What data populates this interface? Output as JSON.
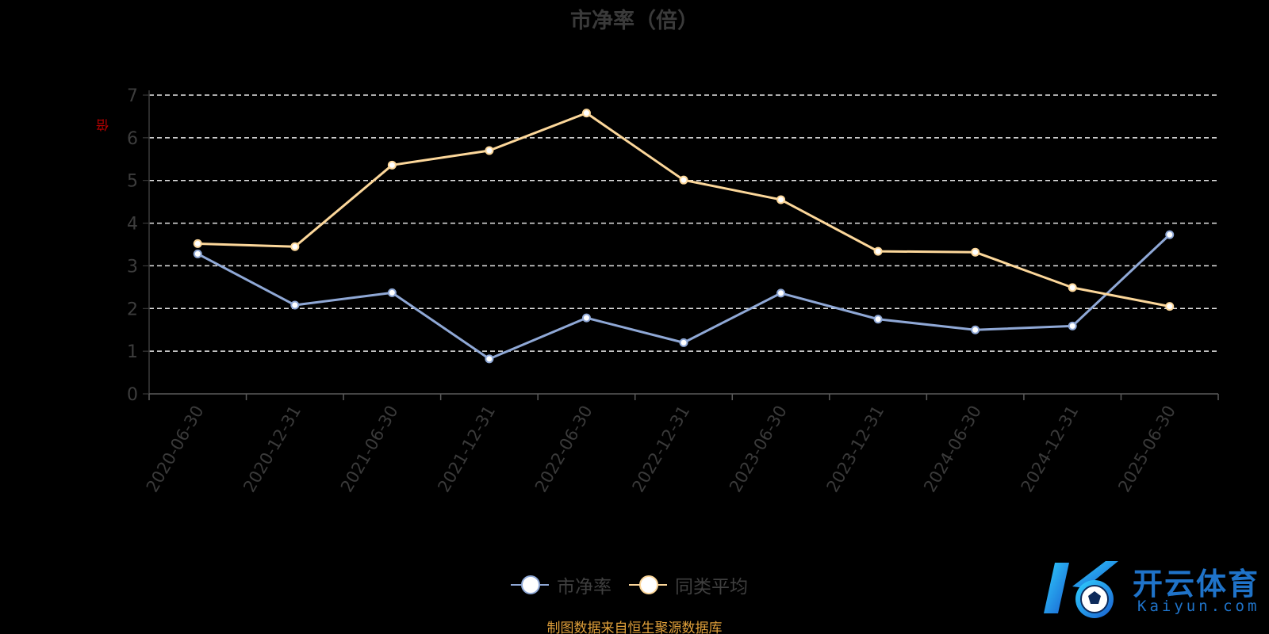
{
  "chart_data": {
    "type": "line",
    "title": "市净率（倍）",
    "ylabel": "倍",
    "xlabel": "",
    "categories": [
      "2020-06-30",
      "2020-12-31",
      "2021-06-30",
      "2021-12-31",
      "2022-06-30",
      "2022-12-31",
      "2023-06-30",
      "2023-12-31",
      "2024-06-30",
      "2024-12-31",
      "2025-06-30"
    ],
    "ylim": [
      0,
      7
    ],
    "yticks": [
      "0",
      "1",
      "2",
      "3",
      "4",
      "5",
      "6",
      "7"
    ],
    "grid": true,
    "legend_position": "bottom",
    "series": [
      {
        "name": "市净率",
        "color": "#8fa8d6",
        "values": [
          3.28,
          2.08,
          2.37,
          0.82,
          1.78,
          1.2,
          2.36,
          1.75,
          1.5,
          1.59,
          3.73
        ]
      },
      {
        "name": "同类平均",
        "color": "#fcd79a",
        "values": [
          3.52,
          3.45,
          5.36,
          5.7,
          6.58,
          5.01,
          4.55,
          3.34,
          3.32,
          2.49,
          2.05
        ]
      }
    ]
  },
  "source_note": "制图数据来自恒生聚源数据库",
  "logo": {
    "text_cn": "开云体育",
    "text_en": "Kaiyun.com"
  }
}
